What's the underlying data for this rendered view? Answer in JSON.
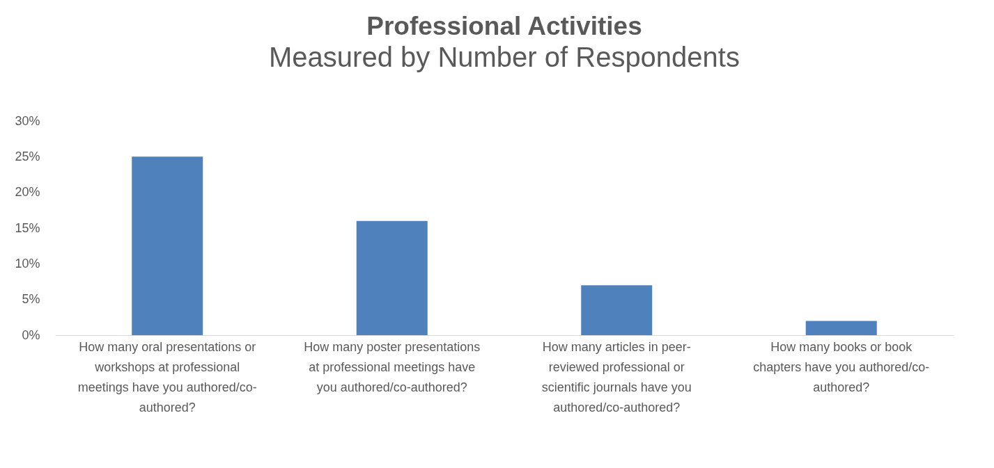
{
  "chart_data": {
    "type": "bar",
    "title": "Professional Activities",
    "subtitle": "Measured by Number of Respondents",
    "categories": [
      "How many oral presentations or workshops at professional meetings have you authored/co-authored?",
      "How many poster presentations at professional meetings have you authored/co-authored?",
      "How many articles in peer-reviewed professional or scientific journals have you authored/co-authored?",
      "How many books or book chapters have you authored/co-authored?"
    ],
    "values": [
      25,
      16,
      7,
      2
    ],
    "color": "#4f81bd",
    "ylim": [
      0,
      30
    ],
    "yticks": [
      {
        "value": 0,
        "label": "0%"
      },
      {
        "value": 5,
        "label": "5%"
      },
      {
        "value": 10,
        "label": "10%"
      },
      {
        "value": 15,
        "label": "15%"
      },
      {
        "value": 20,
        "label": "20%"
      },
      {
        "value": 25,
        "label": "25%"
      },
      {
        "value": 30,
        "label": "30%"
      }
    ],
    "grid": false
  }
}
